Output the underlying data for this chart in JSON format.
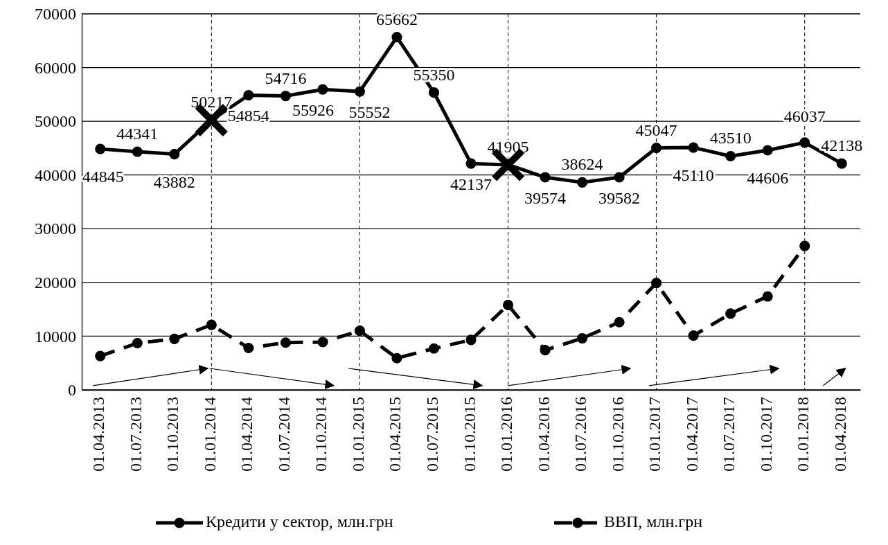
{
  "chart_data": {
    "type": "line",
    "categories": [
      "01.04.2013",
      "01.07.2013",
      "01.10.2013",
      "01.01.2014",
      "01.04.2014",
      "01.07.2014",
      "01.10.2014",
      "01.01.2015",
      "01.04.2015",
      "01.07.2015",
      "01.10.2015",
      "01.01.2016",
      "01.04.2016",
      "01.07.2016",
      "01.10.2016",
      "01.01.2017",
      "01.04.2017",
      "01.07.2017",
      "01.10.2017",
      "01.01.2018",
      "01.04.2018"
    ],
    "series": [
      {
        "name": "Кредити у сектор, млн.грн",
        "color": "#000000",
        "line_style": "solid",
        "values": [
          44845,
          44341,
          43882,
          50217,
          54854,
          54716,
          55926,
          55552,
          65662,
          55350,
          42137,
          41905,
          39574,
          38624,
          39582,
          45047,
          45110,
          43510,
          44606,
          46037,
          42138
        ],
        "value_labels": [
          "44845",
          "44341",
          "43882",
          "50217",
          "54854",
          "54716",
          "55926",
          "55552",
          "65662",
          "55350",
          "42137",
          "41905",
          "39574",
          "38624",
          "39582",
          "45047",
          "45110",
          "43510",
          "44606",
          "46037",
          "42138"
        ]
      },
      {
        "name": "ВВП, млн.грн",
        "color": "#000000",
        "line_style": "dashed",
        "values": [
          6300,
          8700,
          9500,
          12100,
          7800,
          8800,
          8900,
          11000,
          5900,
          7700,
          9300,
          15800,
          7400,
          9600,
          12600,
          19900,
          10100,
          14200,
          17400,
          26800,
          null
        ]
      }
    ],
    "ylim": [
      0,
      70000
    ],
    "yticks": [
      0,
      10000,
      20000,
      30000,
      40000,
      50000,
      60000,
      70000
    ],
    "grid": "y",
    "marker": "circle",
    "legend": "bottom",
    "ref_lines": [
      {
        "axis": "x",
        "value": "01.01.2014",
        "line_style": "dashed"
      },
      {
        "axis": "x",
        "value": "01.01.2015",
        "line_style": "dashed"
      },
      {
        "axis": "x",
        "value": "01.01.2016",
        "line_style": "dashed"
      },
      {
        "axis": "x",
        "value": "01.01.2017",
        "line_style": "dashed"
      },
      {
        "axis": "x",
        "value": "01.01.2018",
        "line_style": "dashed"
      }
    ]
  }
}
